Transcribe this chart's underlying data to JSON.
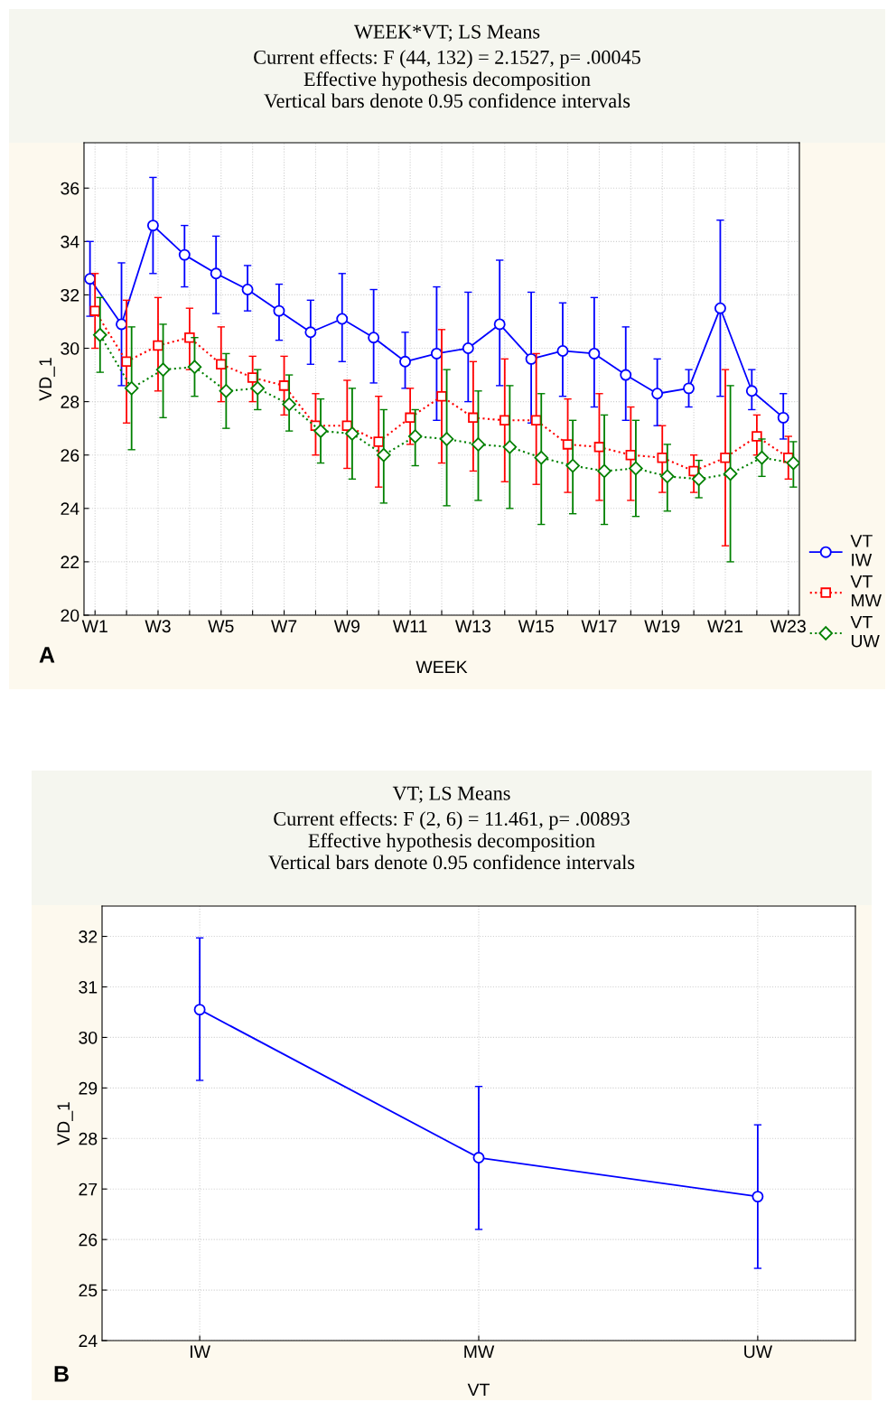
{
  "chart_data": [
    {
      "type": "line",
      "title": "WEEK*VT; LS Means",
      "subtitle": "Current effects: F (44, 132) = 2.1527, p= .00045\nEffective hypothesis decomposition\nVertical bars denote 0.95 confidence intervals",
      "xlabel": "WEEK",
      "ylabel": "VD_1",
      "categories": [
        "W1",
        null,
        "W3",
        null,
        "W5",
        null,
        "W7",
        null,
        "W9",
        null,
        "W11",
        null,
        "W13",
        null,
        "W15",
        null,
        "W17",
        null,
        "W19",
        null,
        "W21",
        null,
        "W23"
      ],
      "ylim": [
        20,
        37.7
      ],
      "yticks": [
        20,
        22,
        24,
        26,
        28,
        30,
        32,
        34,
        36
      ],
      "grid": true,
      "legend": "bottom right",
      "annotations": [
        "A"
      ],
      "series": [
        {
          "name": "VT\nIW",
          "color": "#0000ff",
          "marker": "circle",
          "line_style": "solid",
          "values": [
            32.6,
            30.9,
            34.6,
            33.5,
            32.8,
            32.2,
            31.4,
            30.6,
            31.1,
            30.4,
            29.5,
            29.8,
            30.0,
            30.9,
            29.6,
            29.9,
            29.8,
            29.0,
            28.3,
            28.5,
            31.5,
            28.4,
            27.4
          ],
          "errors": [
            [
              31.2,
              34.0
            ],
            [
              28.6,
              33.2
            ],
            [
              32.8,
              36.4
            ],
            [
              32.3,
              34.6
            ],
            [
              31.3,
              34.2
            ],
            [
              31.4,
              33.1
            ],
            [
              30.3,
              32.4
            ],
            [
              29.4,
              31.8
            ],
            [
              29.5,
              32.8
            ],
            [
              28.7,
              32.2
            ],
            [
              28.5,
              30.6
            ],
            [
              27.3,
              32.3
            ],
            [
              28.0,
              32.1
            ],
            [
              28.6,
              33.3
            ],
            [
              27.2,
              32.1
            ],
            [
              28.2,
              31.7
            ],
            [
              27.8,
              31.9
            ],
            [
              27.3,
              30.8
            ],
            [
              27.1,
              29.6
            ],
            [
              27.8,
              29.2
            ],
            [
              28.2,
              34.8
            ],
            [
              27.7,
              29.2
            ],
            [
              26.6,
              28.3
            ]
          ]
        },
        {
          "name": "VT\nMW",
          "color": "#ff0000",
          "marker": "square",
          "line_style": "dotted",
          "values": [
            31.4,
            29.5,
            30.1,
            30.4,
            29.4,
            28.9,
            28.6,
            27.1,
            27.1,
            26.5,
            27.4,
            28.2,
            27.4,
            27.3,
            27.3,
            26.4,
            26.3,
            26.0,
            25.9,
            25.4,
            25.9,
            26.7,
            25.9
          ],
          "errors": [
            [
              30.0,
              32.8
            ],
            [
              27.2,
              31.8
            ],
            [
              28.4,
              31.9
            ],
            [
              29.2,
              31.5
            ],
            [
              28.0,
              30.8
            ],
            [
              28.0,
              29.7
            ],
            [
              27.5,
              29.7
            ],
            [
              26.0,
              28.3
            ],
            [
              25.5,
              28.8
            ],
            [
              24.8,
              28.2
            ],
            [
              26.4,
              28.5
            ],
            [
              25.7,
              30.7
            ],
            [
              25.4,
              29.5
            ],
            [
              25.0,
              29.6
            ],
            [
              24.9,
              29.8
            ],
            [
              24.6,
              28.1
            ],
            [
              24.3,
              28.3
            ],
            [
              24.3,
              27.8
            ],
            [
              24.6,
              27.1
            ],
            [
              24.6,
              26.0
            ],
            [
              22.6,
              29.2
            ],
            [
              26.0,
              27.5
            ],
            [
              25.1,
              26.7
            ]
          ]
        },
        {
          "name": "VT\nUW",
          "color": "#008000",
          "marker": "diamond",
          "line_style": "dotted",
          "values": [
            30.5,
            28.5,
            29.2,
            29.3,
            28.4,
            28.5,
            27.9,
            26.9,
            26.8,
            26.0,
            26.7,
            26.6,
            26.4,
            26.3,
            25.9,
            25.6,
            25.4,
            25.5,
            25.2,
            25.1,
            25.3,
            25.9,
            25.7
          ],
          "errors": [
            [
              29.1,
              31.9
            ],
            [
              26.2,
              30.8
            ],
            [
              27.4,
              30.9
            ],
            [
              28.2,
              30.4
            ],
            [
              27.0,
              29.8
            ],
            [
              27.7,
              29.2
            ],
            [
              26.9,
              29.0
            ],
            [
              25.7,
              28.1
            ],
            [
              25.1,
              28.5
            ],
            [
              24.2,
              27.7
            ],
            [
              25.6,
              27.7
            ],
            [
              24.1,
              29.2
            ],
            [
              24.3,
              28.4
            ],
            [
              24.0,
              28.6
            ],
            [
              23.4,
              28.3
            ],
            [
              23.8,
              27.3
            ],
            [
              23.4,
              27.5
            ],
            [
              23.7,
              27.3
            ],
            [
              23.9,
              26.4
            ],
            [
              24.4,
              25.8
            ],
            [
              22.0,
              28.6
            ],
            [
              25.2,
              26.6
            ],
            [
              24.8,
              26.5
            ]
          ]
        }
      ]
    },
    {
      "type": "line",
      "title": "VT; LS Means",
      "subtitle": "Current effects: F (2, 6) = 11.461, p= .00893\nEffective hypothesis decomposition\nVertical bars denote 0.95 confidence intervals",
      "xlabel": "VT",
      "ylabel": "VD_1",
      "categories": [
        "IW",
        "MW",
        "UW"
      ],
      "ylim": [
        24,
        32.6
      ],
      "yticks": [
        24,
        25,
        26,
        27,
        28,
        29,
        30,
        31,
        32
      ],
      "grid": true,
      "annotations": [
        "B"
      ],
      "series": [
        {
          "color": "#0000ff",
          "marker": "circle",
          "line_style": "solid",
          "values": [
            30.55,
            27.62,
            26.85
          ],
          "errors": [
            [
              29.15,
              31.97
            ],
            [
              26.2,
              29.03
            ],
            [
              25.43,
              28.27
            ]
          ]
        }
      ]
    }
  ]
}
